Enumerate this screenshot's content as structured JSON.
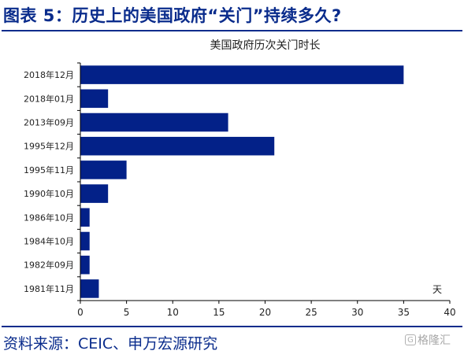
{
  "figure": {
    "title": "图表 5：历史上的美国政府“关门”持续多久?",
    "source": "资料来源：CEIC、申万宏源研究",
    "watermark": "格隆汇",
    "watermark_icon": "glh-logo-icon"
  },
  "colors": {
    "bar": "#032188",
    "brand": "#0a2c8c",
    "axis": "#000000"
  },
  "chart_data": {
    "type": "bar",
    "orientation": "horizontal",
    "title": "美国政府历次关门时长",
    "unit_label": "天",
    "categories": [
      "2018年12月",
      "2018年01月",
      "2013年09月",
      "1995年12月",
      "1995年11月",
      "1990年10月",
      "1986年10月",
      "1984年10月",
      "1982年09月",
      "1981年11月"
    ],
    "values": [
      35,
      3,
      16,
      21,
      5,
      3,
      1,
      1,
      1,
      2
    ],
    "xlim": [
      0,
      40
    ],
    "xticks": [
      0,
      5,
      10,
      15,
      20,
      25,
      30,
      35,
      40
    ],
    "grid": false,
    "legend": "none"
  }
}
